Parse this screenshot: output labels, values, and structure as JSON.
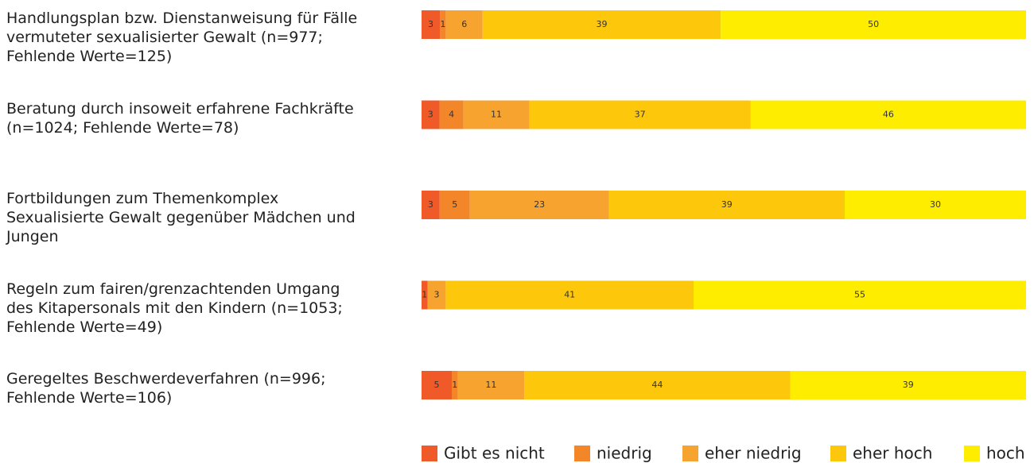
{
  "chart_data": {
    "type": "stacked-bar-horizontal",
    "categories": [
      "Handlungsplan bzw. Dienstanweisung für Fälle vermuteter sexualisierter Gewalt (n=977; Fehlende Werte=125)",
      "Beratung durch insoweit erfahrene Fachkräfte (n=1024; Fehlende Werte=78)",
      "Fortbildungen zum Themenkomplex Sexualisierte Gewalt gegenüber Mädchen und Jungen",
      "Regeln zum fairen/grenzachtenden Umgang des Kitapersonals mit den Kindern (n=1053; Fehlende Werte=49)",
      "Geregeltes Beschwerdeverfahren (n=996; Fehlende Werte=106)"
    ],
    "series": [
      {
        "name": "Gibt es nicht",
        "color": "#f05a28",
        "values": [
          3,
          3,
          3,
          1,
          5
        ]
      },
      {
        "name": "niedrig",
        "color": "#f4862a",
        "values": [
          1,
          4,
          5,
          0,
          1
        ]
      },
      {
        "name": "eher niedrig",
        "color": "#f7a330",
        "values": [
          6,
          11,
          23,
          3,
          11
        ]
      },
      {
        "name": "eher hoch",
        "color": "#fdc70c",
        "values": [
          39,
          37,
          39,
          41,
          44
        ]
      },
      {
        "name": "hoch",
        "color": "#ffed00",
        "values": [
          50,
          46,
          30,
          55,
          39
        ]
      }
    ]
  }
}
